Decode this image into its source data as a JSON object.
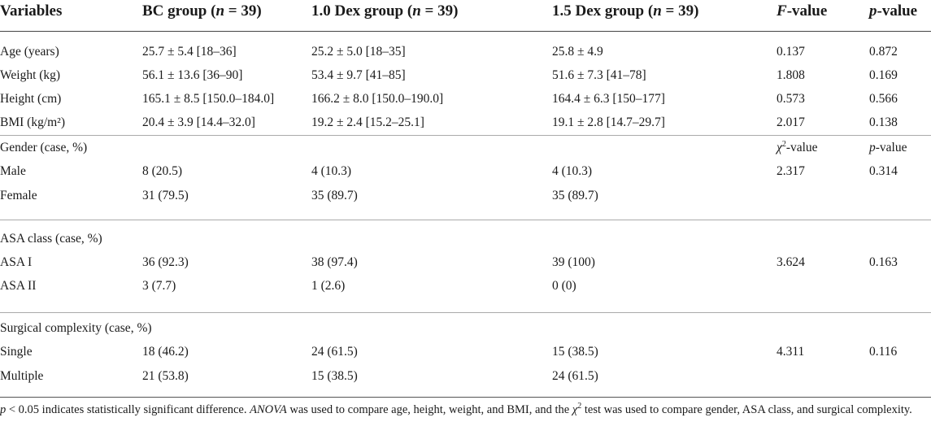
{
  "header": {
    "variables": "Variables",
    "bc_group": "BC group (",
    "dex10_group": "1.0 Dex group (",
    "dex15_group": "1.5 Dex group (",
    "n_label": "n",
    "n_value": " = 39)",
    "f_value_f": "F",
    "f_value_rest": "-value",
    "p_value_p": "p",
    "p_value_rest": "-value"
  },
  "rows": [
    {
      "label": "Age (years)",
      "bc": "25.7 ± 5.4 [18–36]",
      "d10": "25.2 ± 5.0 [18–35]",
      "d15": "25.8 ± 4.9",
      "stat": "0.137",
      "p": "0.872"
    },
    {
      "label": "Weight (kg)",
      "bc": "56.1 ± 13.6 [36–90]",
      "d10": "53.4 ± 9.7 [41–85]",
      "d15": "51.6 ± 7.3 [41–78]",
      "stat": "1.808",
      "p": "0.169"
    },
    {
      "label": "Height (cm)",
      "bc": "165.1 ± 8.5 [150.0–184.0]",
      "d10": "166.2 ± 8.0 [150.0–190.0]",
      "d15": "164.4 ± 6.3 [150–177]",
      "stat": "0.573",
      "p": "0.566"
    },
    {
      "label": "BMI (kg/m²)",
      "bc": "20.4 ± 3.9 [14.4–32.0]",
      "d10": "19.2 ± 2.4 [15.2–25.1]",
      "d15": "19.1 ± 2.8 [14.7–29.7]",
      "stat": "2.017",
      "p": "0.138"
    },
    {
      "label": "Gender (case, %)",
      "bc": "",
      "d10": "",
      "d15": "",
      "stat_chi": "χ",
      "stat_chi_sup": "2",
      "stat_chi_rest": "-value",
      "p_p": "p",
      "p_rest": "-value"
    },
    {
      "label": "Male",
      "bc": "8 (20.5)",
      "d10": "4 (10.3)",
      "d15": "4 (10.3)",
      "stat": "2.317",
      "p": "0.314"
    },
    {
      "label": "Female",
      "bc": "31 (79.5)",
      "d10": "35 (89.7)",
      "d15": "35 (89.7)",
      "stat": "",
      "p": ""
    },
    {
      "label": "ASA class (case, %)",
      "bc": "",
      "d10": "",
      "d15": "",
      "stat": "",
      "p": ""
    },
    {
      "label": "ASA I",
      "bc": "36 (92.3)",
      "d10": "38 (97.4)",
      "d15": "39 (100)",
      "stat": "3.624",
      "p": "0.163"
    },
    {
      "label": "ASA II",
      "bc": "3 (7.7)",
      "d10": "1 (2.6)",
      "d15": "0 (0)",
      "stat": "",
      "p": ""
    },
    {
      "label": "Surgical complexity (case, %)",
      "bc": "",
      "d10": "",
      "d15": "",
      "stat": "",
      "p": ""
    },
    {
      "label": "Single",
      "bc": "18 (46.2)",
      "d10": "24 (61.5)",
      "d15": "15 (38.5)",
      "stat": "4.311",
      "p": "0.116"
    },
    {
      "label": "Multiple",
      "bc": "21 (53.8)",
      "d10": "15 (38.5)",
      "d15": "24 (61.5)",
      "stat": "",
      "p": ""
    }
  ],
  "footnote": {
    "p": "p",
    "part1": " < 0.05 indicates statistically significant difference. ",
    "anova": "ANOVA",
    "part2": " was used to compare age, height, weight, and BMI, and the ",
    "chi": "χ",
    "chi_sup": "2",
    "part3": " test was used to compare gender, ASA class, and surgical complexity."
  }
}
